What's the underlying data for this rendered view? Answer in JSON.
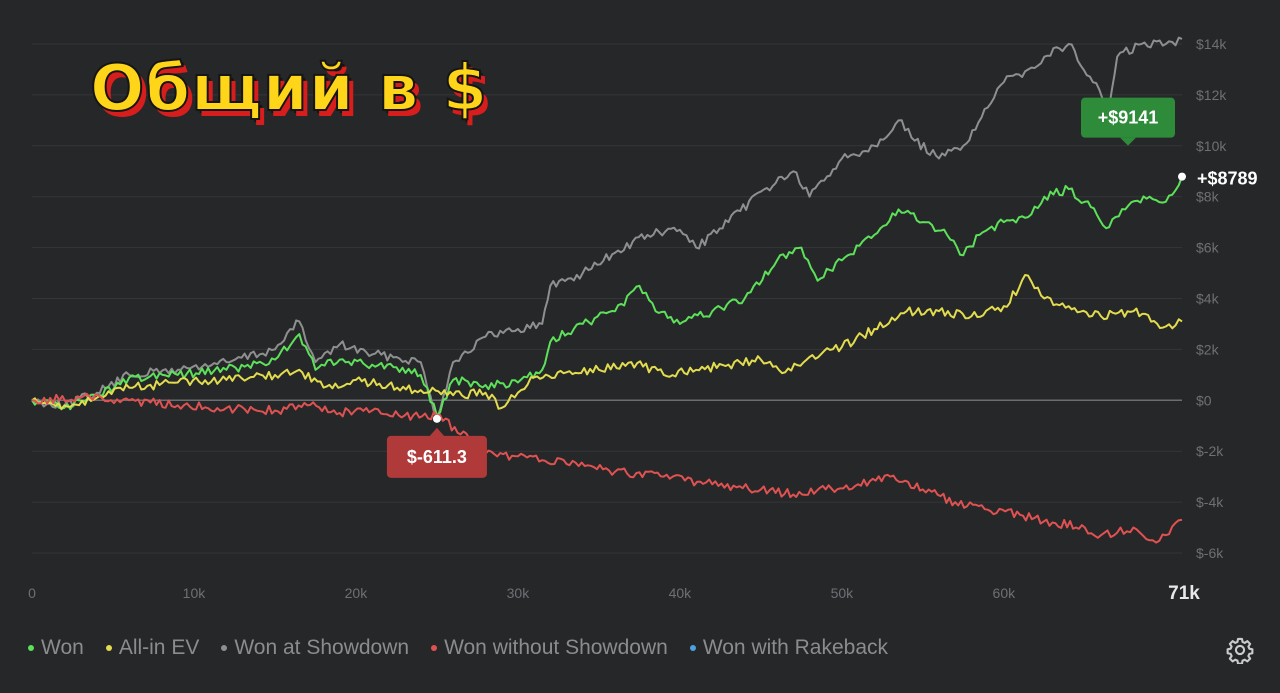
{
  "overlay_title": "Общий в $",
  "legend": [
    {
      "label": "Won",
      "color": "#5de05a"
    },
    {
      "label": "All-in EV",
      "color": "#e2dc4e"
    },
    {
      "label": "Won at Showdown",
      "color": "#8f8f8f"
    },
    {
      "label": "Won without Showdown",
      "color": "#e05252"
    },
    {
      "label": "Won with Rakeback",
      "color": "#4aa3e0"
    }
  ],
  "chart_data": {
    "type": "line",
    "title": "",
    "xlabel": "",
    "ylabel": "",
    "xlim": [
      0,
      71000
    ],
    "ylim": [
      -6000,
      14000
    ],
    "x_tick_labels": [
      "0",
      "10k",
      "20k",
      "30k",
      "40k",
      "50k",
      "60k",
      "71k"
    ],
    "x_tick_values": [
      0,
      10000,
      20000,
      30000,
      40000,
      50000,
      60000,
      71000
    ],
    "y_tick_labels": [
      "$14k",
      "$12k",
      "$10k",
      "$8k",
      "$6k",
      "$4k",
      "$2k",
      "$0",
      "$-2k",
      "$-4k",
      "$-6k"
    ],
    "y_tick_values": [
      14000,
      12000,
      10000,
      8000,
      6000,
      4000,
      2000,
      0,
      -2000,
      -4000,
      -6000
    ],
    "grid": true,
    "legend_position": "bottom",
    "series": [
      {
        "name": "Won at Showdown",
        "color": "#8f8f8f",
        "x": [
          0,
          2000,
          4000,
          6000,
          9000,
          12000,
          15000,
          16500,
          17500,
          19000,
          21000,
          22500,
          24000,
          25000,
          26000,
          28000,
          30000,
          31500,
          32000,
          34000,
          36000,
          38000,
          40000,
          41000,
          43000,
          45000,
          47000,
          48000,
          50000,
          52000,
          53500,
          54500,
          56000,
          57500,
          59000,
          60000,
          61500,
          62500,
          64000,
          65500,
          66500,
          67000,
          68500,
          70000,
          71000
        ],
        "values": [
          0,
          -200,
          300,
          1000,
          1200,
          1500,
          2000,
          3100,
          1500,
          2200,
          1800,
          1700,
          1500,
          -700,
          1500,
          2500,
          2800,
          3000,
          4500,
          5000,
          5800,
          6500,
          6700,
          6000,
          7000,
          8200,
          9000,
          8000,
          9500,
          10000,
          11000,
          10200,
          9500,
          10000,
          11500,
          12500,
          13000,
          13500,
          14000,
          12500,
          11500,
          13500,
          14000,
          14000,
          14200
        ]
      },
      {
        "name": "Won",
        "color": "#5de05a",
        "x": [
          0,
          2000,
          4000,
          6000,
          9000,
          12000,
          15000,
          16500,
          17500,
          19000,
          21000,
          22500,
          24000,
          25000,
          26000,
          28000,
          30000,
          31500,
          32000,
          34000,
          36000,
          37500,
          38500,
          40000,
          42000,
          44000,
          46000,
          47500,
          48500,
          50000,
          52000,
          53500,
          55000,
          56500,
          57500,
          58500,
          60000,
          61500,
          62500,
          64000,
          65000,
          66500,
          67500,
          69000,
          70000,
          71000
        ],
        "values": [
          0,
          -300,
          200,
          900,
          1000,
          1200,
          1600,
          2600,
          1200,
          1600,
          1400,
          1300,
          1000,
          -611.3,
          800,
          600,
          700,
          1200,
          2300,
          3000,
          3500,
          4500,
          3500,
          3000,
          3500,
          4000,
          5500,
          6000,
          4700,
          5500,
          6500,
          7500,
          7000,
          6500,
          5700,
          6500,
          7000,
          7200,
          8000,
          8300,
          7800,
          6800,
          7500,
          8000,
          7800,
          8789
        ]
      },
      {
        "name": "All-in EV",
        "color": "#e2dc4e",
        "x": [
          0,
          2000,
          4000,
          6000,
          9000,
          12000,
          15000,
          16500,
          18000,
          20000,
          22000,
          24000,
          26000,
          28000,
          29000,
          30000,
          31000,
          33000,
          35000,
          37000,
          39000,
          41000,
          43000,
          45000,
          46500,
          48000,
          50000,
          52000,
          54000,
          56000,
          58000,
          60000,
          61500,
          62500,
          64000,
          66000,
          68000,
          70000,
          71000
        ],
        "values": [
          0,
          -200,
          100,
          500,
          700,
          800,
          1000,
          1200,
          500,
          800,
          600,
          400,
          200,
          300,
          -300,
          300,
          900,
          1100,
          1200,
          1500,
          1000,
          1200,
          1400,
          1600,
          1100,
          1700,
          2100,
          2800,
          3500,
          3500,
          3300,
          3700,
          4900,
          4000,
          3700,
          3300,
          3500,
          2900,
          3100
        ]
      },
      {
        "name": "Won without Showdown",
        "color": "#e05252",
        "x": [
          0,
          3000,
          6000,
          9000,
          12000,
          15000,
          17000,
          19000,
          21000,
          23000,
          25000,
          27000,
          28000,
          30000,
          33000,
          36000,
          39000,
          42000,
          45000,
          47000,
          49000,
          51000,
          53000,
          55000,
          57000,
          59000,
          61000,
          63000,
          65000,
          66000,
          67000,
          68000,
          69000,
          70000,
          71000
        ],
        "values": [
          0,
          100,
          0,
          -200,
          -300,
          -400,
          -200,
          -500,
          -400,
          -600,
          -611.3,
          -1500,
          -2100,
          -2200,
          -2500,
          -2800,
          -3000,
          -3300,
          -3500,
          -3700,
          -3500,
          -3300,
          -3000,
          -3500,
          -4000,
          -4300,
          -4500,
          -4800,
          -5000,
          -5300,
          -5200,
          -5000,
          -5500,
          -5300,
          -4700
        ]
      }
    ],
    "annotations": [
      {
        "text": "+$9141",
        "x": 71000,
        "y": 9141,
        "color": "#2e8b3a"
      },
      {
        "text": "+$8789",
        "x": 71000,
        "y": 8789,
        "color": "#ffffff"
      },
      {
        "text": "$-611.3",
        "x": 25000,
        "y": -611.3,
        "color": "#b03a3a"
      }
    ]
  },
  "colors": {
    "background": "#262728",
    "grid": "#34363a",
    "zero_line": "#6b6d70",
    "tick_text": "#6d7074",
    "last_tick_text": "#e8e8e8"
  },
  "icons": {
    "settings": "gear-icon"
  }
}
